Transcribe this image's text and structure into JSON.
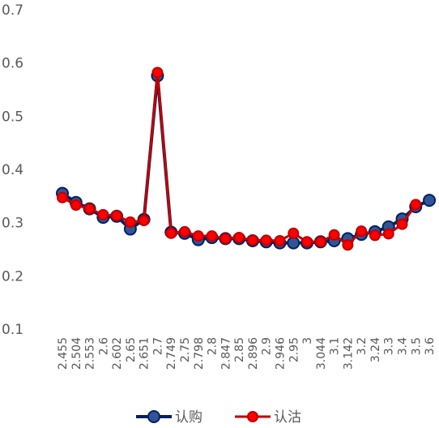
{
  "chart_data": {
    "type": "line",
    "title": "",
    "xlabel": "",
    "ylabel": "",
    "ylim": [
      0.1,
      0.7
    ],
    "yticks": [
      "0.1",
      "0.2",
      "0.3",
      "0.4",
      "0.5",
      "0.6",
      "0.7"
    ],
    "grid": false,
    "legend_position": "bottom",
    "categories": [
      "2.455",
      "2.504",
      "2.553",
      "2.6",
      "2.602",
      "2.65",
      "2.651",
      "2.7",
      "2.749",
      "2.75",
      "2.798",
      "2.8",
      "2.847",
      "2.85",
      "2.896",
      "2.9",
      "2.946",
      "2.95",
      "3",
      "3.044",
      "3.1",
      "3.142",
      "3.2",
      "3.24",
      "3.3",
      "3.4",
      "3.5",
      "3.6"
    ],
    "series": [
      {
        "name": "认购",
        "color": "#002060",
        "marker_fill": "#2F5597",
        "values": [
          0.355,
          0.338,
          0.326,
          0.31,
          0.312,
          0.288,
          0.306,
          0.576,
          0.282,
          0.28,
          0.268,
          0.272,
          0.27,
          0.27,
          0.266,
          0.264,
          0.262,
          0.262,
          0.262,
          0.264,
          0.266,
          0.27,
          0.278,
          0.283,
          0.292,
          0.307,
          0.33,
          0.342
        ]
      },
      {
        "name": "认沽",
        "color": "#C00000",
        "marker_fill": "#FF0000",
        "values": [
          0.347,
          0.333,
          0.326,
          0.315,
          0.313,
          0.301,
          0.304,
          0.582,
          0.28,
          0.283,
          0.275,
          0.275,
          0.27,
          0.272,
          0.267,
          0.267,
          0.266,
          0.28,
          0.264,
          0.264,
          0.277,
          0.258,
          0.284,
          0.276,
          0.279,
          0.297,
          0.334,
          null
        ]
      }
    ]
  }
}
